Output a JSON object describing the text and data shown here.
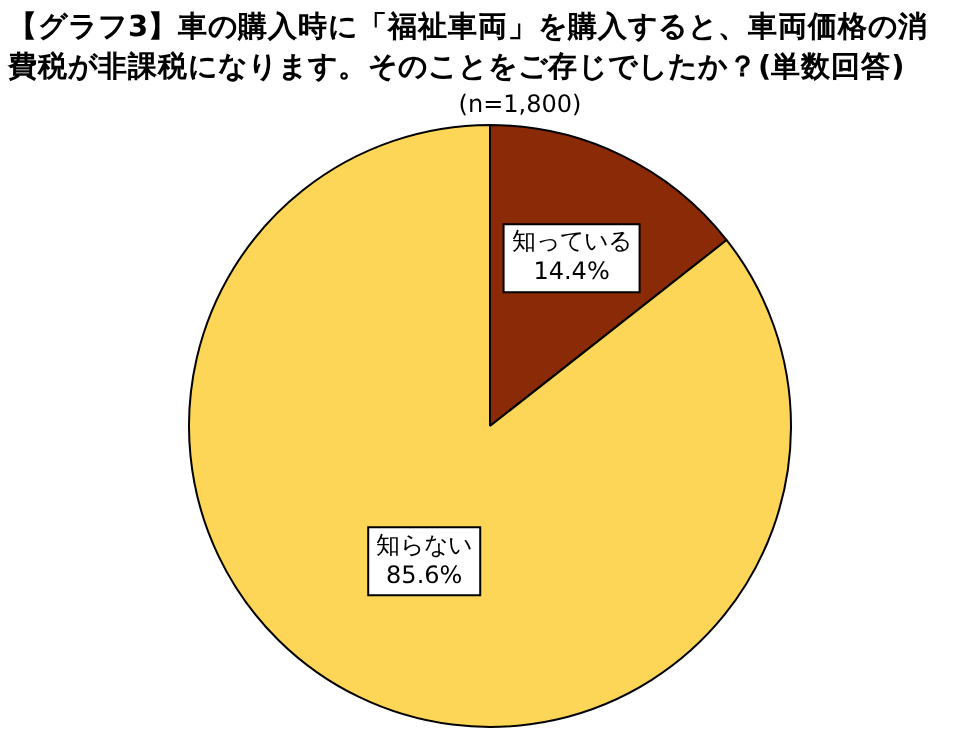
{
  "chart_data": {
    "type": "pie",
    "title": "【グラフ3】車の購入時に「福祉車両」を購入すると、車両価格の消費税が非課税になります。そのことをご存じでしたか？(単数回答)",
    "subtitle": "(n=1,800)",
    "categories": [
      "知っている",
      "知らない"
    ],
    "values": [
      14.4,
      85.6
    ],
    "colors": [
      "#8b2a06",
      "#fdd657"
    ],
    "value_labels": [
      "14.4%",
      "85.6%"
    ],
    "legend": false
  }
}
